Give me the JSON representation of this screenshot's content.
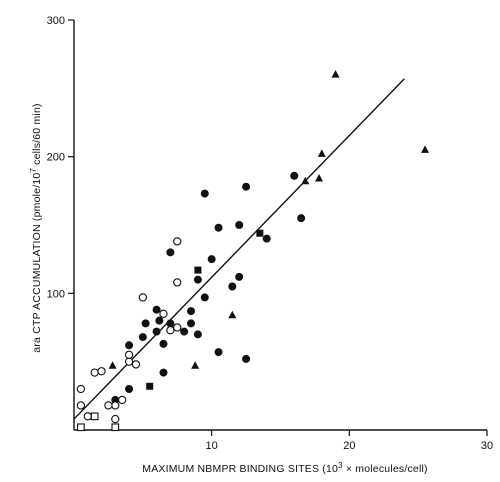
{
  "chart_data": {
    "type": "scatter",
    "xlabel_parts": [
      "MAXIMUM NBMPR BINDING SITES (10",
      "3",
      " × molecules/cell)"
    ],
    "ylabel_parts": [
      "ara CTP ACCUMULATION (pmole/10",
      "7",
      " cells/60 min)"
    ],
    "xlim": [
      0,
      30
    ],
    "ylim": [
      0,
      300
    ],
    "x_ticks": [
      10,
      20,
      30
    ],
    "y_ticks": [
      100,
      200,
      300
    ],
    "grid": false,
    "colors": {
      "ink": "#111111"
    },
    "series": [
      {
        "marker": "filled-circle",
        "points": [
          [
            3.0,
            22
          ],
          [
            4.0,
            30
          ],
          [
            4.5,
            48
          ],
          [
            4.0,
            62
          ],
          [
            5.0,
            68
          ],
          [
            5.2,
            78
          ],
          [
            6.0,
            88
          ],
          [
            6.2,
            80
          ],
          [
            6.5,
            63
          ],
          [
            6.5,
            42
          ],
          [
            7.0,
            78
          ],
          [
            7.0,
            130
          ],
          [
            7.5,
            75
          ],
          [
            8.0,
            72
          ],
          [
            8.5,
            87
          ],
          [
            9.0,
            110
          ],
          [
            9.0,
            70
          ],
          [
            9.5,
            97
          ],
          [
            9.5,
            173
          ],
          [
            10.0,
            125
          ],
          [
            10.5,
            148
          ],
          [
            10.5,
            57
          ],
          [
            11.5,
            105
          ],
          [
            12.0,
            150
          ],
          [
            12.0,
            112
          ],
          [
            12.5,
            178
          ],
          [
            12.5,
            52
          ],
          [
            14.0,
            140
          ],
          [
            16.0,
            186
          ],
          [
            16.5,
            155
          ],
          [
            8.5,
            78
          ],
          [
            6.0,
            72
          ]
        ]
      },
      {
        "marker": "open-circle",
        "points": [
          [
            0.5,
            30
          ],
          [
            0.5,
            18
          ],
          [
            1.5,
            42
          ],
          [
            2.0,
            43
          ],
          [
            3.0,
            18
          ],
          [
            3.5,
            22
          ],
          [
            2.5,
            18
          ],
          [
            4.0,
            50
          ],
          [
            4.5,
            48
          ],
          [
            5.0,
            97
          ],
          [
            6.5,
            85
          ],
          [
            7.0,
            73
          ],
          [
            7.5,
            75
          ],
          [
            7.5,
            108
          ],
          [
            7.5,
            138
          ],
          [
            4.0,
            55
          ],
          [
            3.0,
            8
          ],
          [
            1.0,
            10
          ]
        ]
      },
      {
        "marker": "open-square",
        "points": [
          [
            0.5,
            2
          ],
          [
            1.5,
            10
          ],
          [
            3.0,
            2
          ]
        ]
      },
      {
        "marker": "filled-square",
        "points": [
          [
            5.5,
            32
          ],
          [
            9.0,
            117
          ],
          [
            13.5,
            144
          ]
        ]
      },
      {
        "marker": "filled-triangle",
        "points": [
          [
            2.8,
            47
          ],
          [
            8.8,
            47
          ],
          [
            11.5,
            84
          ],
          [
            16.8,
            182
          ],
          [
            17.8,
            184
          ],
          [
            18.0,
            202
          ],
          [
            19.0,
            260
          ],
          [
            25.5,
            205
          ]
        ]
      }
    ],
    "regression_line": {
      "from": [
        0,
        8
      ],
      "to": [
        24,
        257
      ]
    }
  }
}
